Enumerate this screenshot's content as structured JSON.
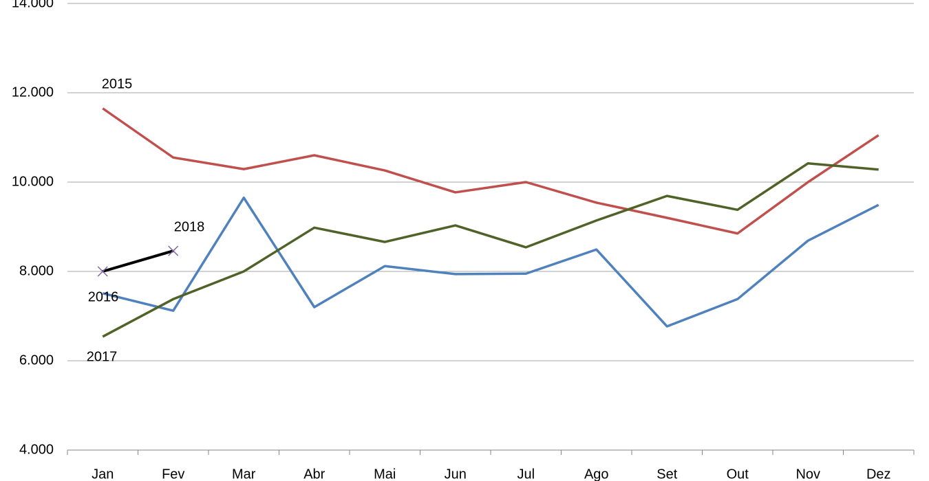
{
  "chart_data": {
    "type": "line",
    "categories": [
      "Jan",
      "Fev",
      "Mar",
      "Abr",
      "Mai",
      "Jun",
      "Jul",
      "Ago",
      "Set",
      "Out",
      "Nov",
      "Dez"
    ],
    "series": [
      {
        "name": "2015",
        "color": "#c0504d",
        "values": [
          11650,
          10550,
          10290,
          10600,
          10260,
          9770,
          10000,
          9540,
          9200,
          8850,
          10000,
          11050
        ]
      },
      {
        "name": "2016",
        "color": "#4f81bd",
        "values": [
          7510,
          7120,
          9650,
          7200,
          8120,
          7940,
          7950,
          8490,
          6770,
          7380,
          8690,
          9490
        ]
      },
      {
        "name": "2017",
        "color": "#4f6228",
        "values": [
          6540,
          7380,
          8000,
          8980,
          8660,
          9030,
          8540,
          9140,
          9690,
          9380,
          10420,
          10280
        ]
      },
      {
        "name": "2018",
        "color": "#000000",
        "marker_color": "#8064a2",
        "values": [
          8000,
          8460,
          null,
          null,
          null,
          null,
          null,
          null,
          null,
          null,
          null,
          null
        ]
      }
    ],
    "ylim": [
      4000,
      14000
    ],
    "yticks": [
      {
        "value": 4000,
        "label": "4.000"
      },
      {
        "value": 6000,
        "label": "6.000"
      },
      {
        "value": 8000,
        "label": "8.000"
      },
      {
        "value": 10000,
        "label": "10.000"
      },
      {
        "value": 12000,
        "label": "12.000"
      },
      {
        "value": 14000,
        "label": "14.000"
      }
    ],
    "grid": true
  }
}
